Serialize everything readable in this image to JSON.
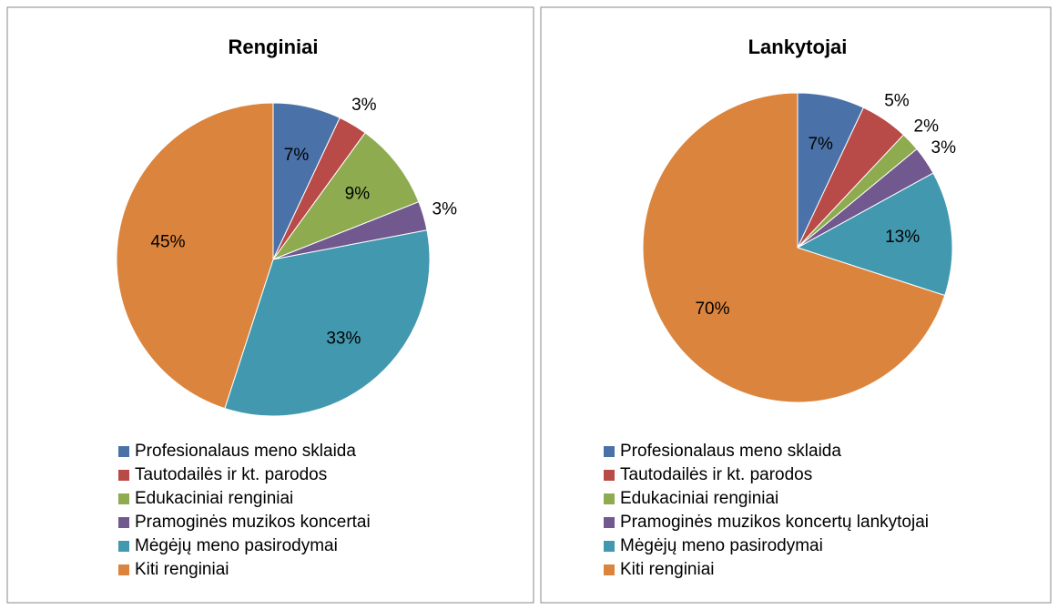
{
  "chart_data": [
    {
      "type": "pie",
      "title": "Renginiai",
      "categories": [
        "Profesionalaus meno sklaida",
        "Tautodailės ir kt. parodos",
        "Edukaciniai renginiai",
        "Pramoginės muzikos koncertai",
        "Mėgėjų meno pasirodymai",
        "Kiti renginiai"
      ],
      "values": [
        7,
        3,
        9,
        3,
        33,
        45
      ],
      "value_labels": [
        "7%",
        "3%",
        "9%",
        "3%",
        "33%",
        "45%"
      ],
      "colors": [
        "#4a72a8",
        "#b84a47",
        "#8eab4f",
        "#71588f",
        "#4298af",
        "#db843d"
      ]
    },
    {
      "type": "pie",
      "title": "Lankytojai",
      "categories": [
        "Profesionalaus meno sklaida",
        "Tautodailės ir kt. parodos",
        "Edukaciniai renginiai",
        "Pramoginės muzikos koncertų lankytojai",
        "Mėgėjų meno pasirodymai",
        "Kiti renginiai"
      ],
      "values": [
        7,
        5,
        2,
        3,
        13,
        70
      ],
      "value_labels": [
        "7%",
        "5%",
        "2%",
        "3%",
        "13%",
        "70%"
      ],
      "colors": [
        "#4a72a8",
        "#b84a47",
        "#8eab4f",
        "#71588f",
        "#4298af",
        "#db843d"
      ]
    }
  ]
}
